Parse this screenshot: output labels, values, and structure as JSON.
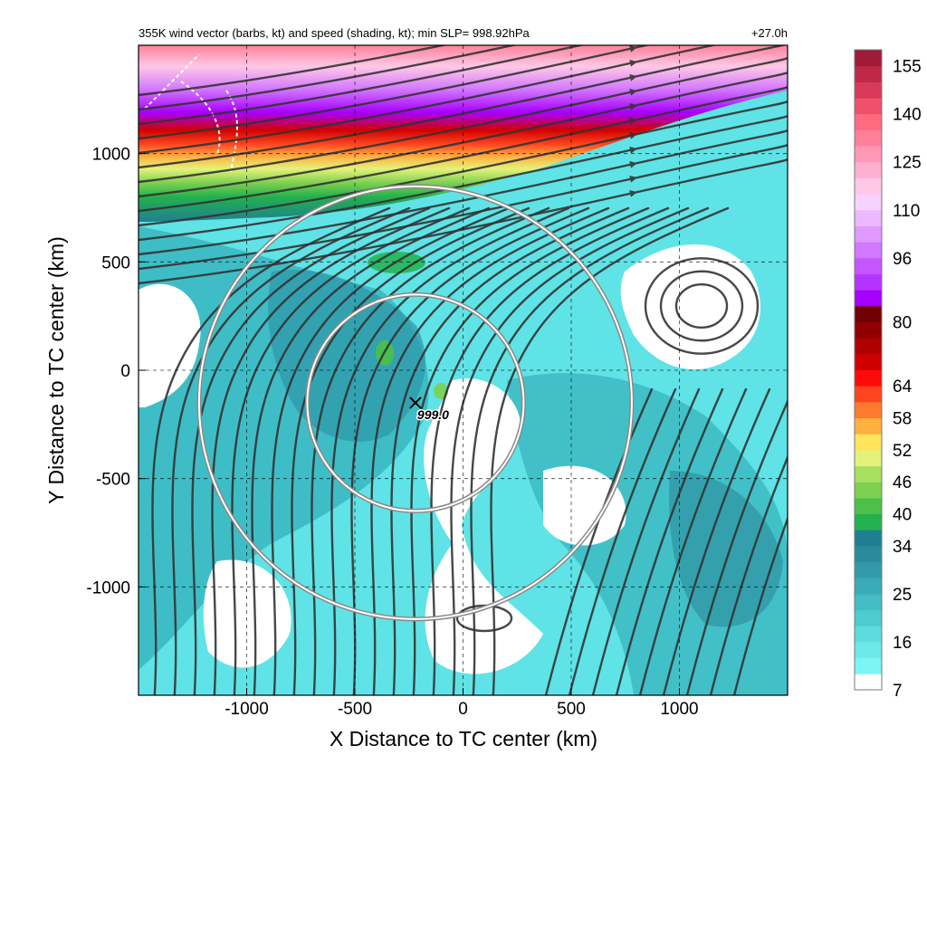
{
  "header": {
    "title": "355K wind vector (barbs, kt) and speed (shading, kt); min SLP= 998.92hPa",
    "lead_time": "+27.0h"
  },
  "chart_data": {
    "type": "heatmap",
    "title": "355K wind vector (barbs, kt) and speed (shading, kt); min SLP= 998.92hPa",
    "xlabel": "X Distance to TC center (km)",
    "ylabel": "Y Distance to TC center (km)",
    "xlim": [
      -1500,
      1500
    ],
    "ylim": [
      -1500,
      1500
    ],
    "x_ticks": [
      -1000,
      -500,
      0,
      500,
      1000
    ],
    "x_tick_labels": [
      "-1000",
      "-500",
      "0",
      "500",
      "1000"
    ],
    "y_ticks": [
      -1000,
      -500,
      0,
      500,
      1000
    ],
    "y_tick_labels": [
      "-1000",
      "-500",
      "0",
      "500",
      "1000"
    ],
    "grid": true,
    "colorbar": {
      "levels": [
        7,
        10,
        13,
        16,
        19,
        22,
        25,
        28,
        31,
        34,
        37,
        40,
        43,
        46,
        49,
        52,
        55,
        58,
        61,
        64,
        68,
        72,
        76,
        80,
        84,
        88,
        92,
        96,
        100,
        105,
        110,
        115,
        120,
        125,
        130,
        135,
        140,
        145,
        150,
        155,
        160
      ],
      "labels": [
        "7",
        "16",
        "25",
        "34",
        "40",
        "46",
        "52",
        "58",
        "64",
        "80",
        "96",
        "110",
        "125",
        "140",
        "155"
      ],
      "colors": [
        "#ffffff",
        "#7ef5f5",
        "#6ee9ea",
        "#5cdcde",
        "#4ecdd1",
        "#43bcc4",
        "#3aabb7",
        "#329aaa",
        "#2b8b9d",
        "#1f7f92",
        "#22b14c",
        "#4cc048",
        "#7dd050",
        "#a8e060",
        "#e4f27a",
        "#ffe45c",
        "#ffb040",
        "#ff7a2e",
        "#ff4420",
        "#ff0a0a",
        "#d00000",
        "#b00000",
        "#900000",
        "#700000",
        "#a600ff",
        "#b533ff",
        "#c455ff",
        "#d277ff",
        "#e099ff",
        "#ecb8ff",
        "#f6d2ff",
        "#ffc8e6",
        "#ffb0d0",
        "#ff98b4",
        "#ff8098",
        "#ff6a80",
        "#f0506a",
        "#d83a58",
        "#c02848",
        "#a01a3a"
      ]
    },
    "storm_center": {
      "x": -220,
      "y": -150,
      "label": "999.0",
      "marker": "x"
    },
    "rings_km": [
      500,
      1000
    ],
    "jet_stream_band": "northern edge, wind speeds 40-155 kt",
    "coastline": "white dashed outline in top-left corner"
  }
}
